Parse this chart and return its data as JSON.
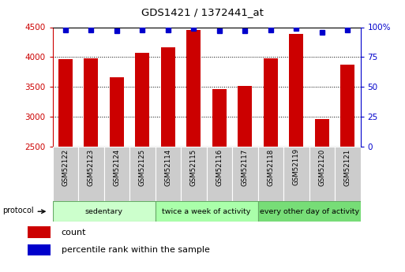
{
  "title": "GDS1421 / 1372441_at",
  "samples": [
    "GSM52122",
    "GSM52123",
    "GSM52124",
    "GSM52125",
    "GSM52114",
    "GSM52115",
    "GSM52116",
    "GSM52117",
    "GSM52118",
    "GSM52119",
    "GSM52120",
    "GSM52121"
  ],
  "counts": [
    3960,
    3980,
    3660,
    4070,
    4160,
    4460,
    3460,
    3520,
    3980,
    4390,
    2970,
    3870
  ],
  "percentiles": [
    98,
    98,
    97,
    98,
    98,
    99,
    97,
    97,
    98,
    99,
    96,
    98
  ],
  "ylim_left": [
    2500,
    4500
  ],
  "ylim_right": [
    0,
    100
  ],
  "yticks_left": [
    2500,
    3000,
    3500,
    4000,
    4500
  ],
  "yticks_right": [
    0,
    25,
    50,
    75,
    100
  ],
  "groups": [
    {
      "label": "sedentary",
      "start": 0,
      "end": 4,
      "color": "#ccffcc"
    },
    {
      "label": "twice a week of activity",
      "start": 4,
      "end": 8,
      "color": "#aaffaa"
    },
    {
      "label": "every other day of activity",
      "start": 8,
      "end": 12,
      "color": "#77dd77"
    }
  ],
  "protocol_label": "protocol",
  "bar_color": "#cc0000",
  "dot_color": "#0000cc",
  "bar_width": 0.55,
  "bg_color": "#ffffff",
  "left_tick_color": "#cc0000",
  "right_tick_color": "#0000cc",
  "grid_color": "black",
  "xtick_bg": "#cccccc",
  "left_spine_color": "#cc0000",
  "right_spine_color": "#0000cc"
}
